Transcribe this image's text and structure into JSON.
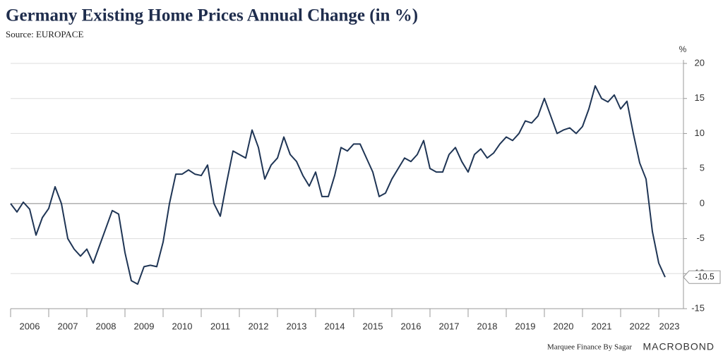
{
  "chart_data": {
    "type": "line",
    "title": "Germany Existing Home Prices Annual Change (in %)",
    "subtitle": "Source: EUROPACE",
    "y_unit": "%",
    "credit": "Marquee Finance By Sagar",
    "brand": "MACROBOND",
    "color": "#1f3555",
    "ylim": [
      -15,
      20
    ],
    "yticks": [
      -15,
      -10,
      -5,
      0,
      5,
      10,
      15,
      20
    ],
    "grid": true,
    "categories": [
      "2006",
      null,
      null,
      null,
      null,
      null,
      "2007",
      null,
      null,
      null,
      null,
      null,
      "2008",
      null,
      null,
      null,
      null,
      null,
      "2009",
      null,
      null,
      null,
      null,
      null,
      "2010",
      null,
      null,
      null,
      null,
      null,
      "2011",
      null,
      null,
      null,
      null,
      null,
      "2012",
      null,
      null,
      null,
      null,
      null,
      "2013",
      null,
      null,
      null,
      null,
      null,
      "2014",
      null,
      null,
      null,
      null,
      null,
      "2015",
      null,
      null,
      null,
      null,
      null,
      "2016",
      null,
      null,
      null,
      null,
      null,
      "2017",
      null,
      null,
      null,
      null,
      null,
      "2018",
      null,
      null,
      null,
      null,
      null,
      "2019",
      null,
      null,
      null,
      null,
      null,
      "2020",
      null,
      null,
      null,
      null,
      null,
      "2021",
      null,
      null,
      null,
      null,
      null,
      "2022",
      null,
      null,
      null,
      null,
      null,
      "2023",
      null
    ],
    "values": [
      0,
      -1.2,
      0.2,
      -0.8,
      -4.5,
      -2,
      -0.7,
      2.4,
      0,
      -5,
      -6.5,
      -7.5,
      -6.5,
      -8.5,
      -6,
      -3.5,
      -1,
      -1.5,
      -7,
      -11,
      -11.5,
      -9,
      -8.8,
      -9,
      -5.5,
      0,
      4.2,
      4.2,
      4.8,
      4.2,
      4,
      5.5,
      0,
      -1.8,
      3,
      7.5,
      7,
      6.5,
      10.5,
      8,
      3.5,
      5.5,
      6.5,
      9.5,
      7,
      6,
      4,
      2.5,
      4.5,
      1,
      1,
      4,
      8,
      7.5,
      8.5,
      8.5,
      6.5,
      4.5,
      1,
      1.5,
      3.5,
      5,
      6.5,
      6,
      7,
      9,
      5,
      4.5,
      4.5,
      7,
      8,
      6,
      4.5,
      7,
      7.8,
      6.5,
      7.2,
      8.5,
      9.5,
      9,
      10,
      11.8,
      11.5,
      12.5,
      15,
      12.5,
      10,
      10.5,
      10.8,
      10,
      11,
      13.5,
      16.8,
      15,
      14.5,
      15.5,
      13.5,
      14.6,
      10,
      5.8,
      3.5,
      -4,
      -8.5,
      -10.5
    ]
  }
}
